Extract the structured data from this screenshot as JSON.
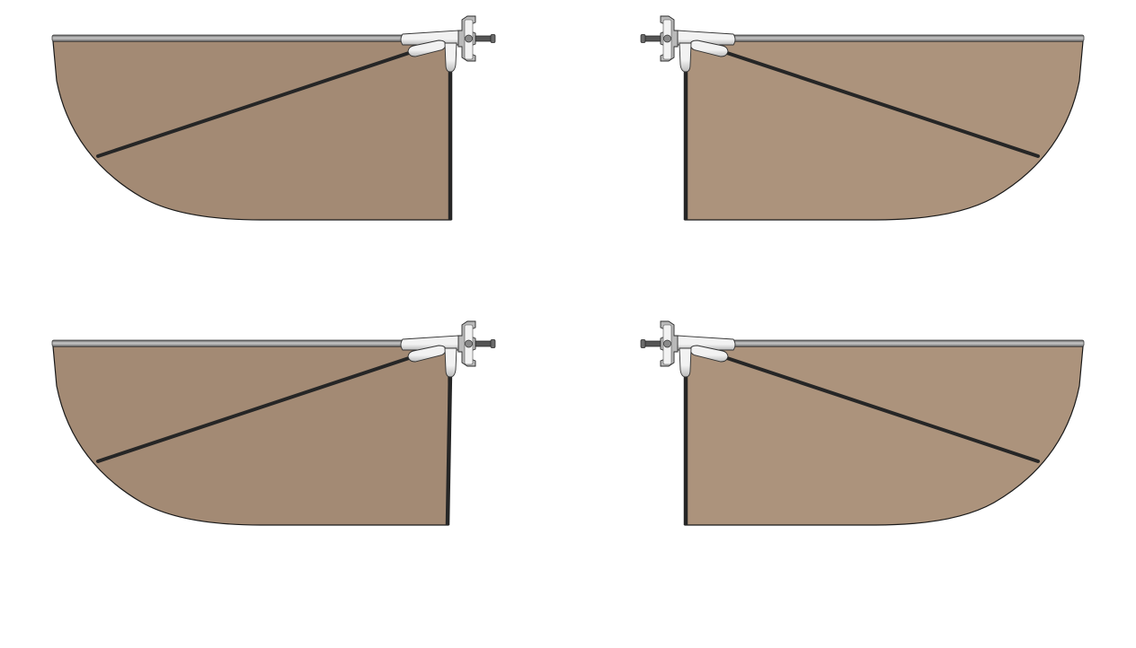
{
  "colors": {
    "background": "#ffffff",
    "sail_fill_left": "#a38a74",
    "sail_fill_right": "#ac937c",
    "outline": "#1a1a1a",
    "boom_light": "#c8c8c8",
    "boom_dark": "#7a7a7a",
    "pole": "#262626",
    "hardware_light": "#f2f2f2",
    "hardware_mid": "#b9b9b9",
    "hardware_dark": "#5d5d5d"
  },
  "panels": [
    {
      "id": "top-left",
      "orientation": "left",
      "mast_lean": 0
    },
    {
      "id": "top-right",
      "orientation": "right",
      "mast_lean": 0
    },
    {
      "id": "bottom-left",
      "orientation": "left",
      "mast_lean": -3
    },
    {
      "id": "bottom-right",
      "orientation": "right",
      "mast_lean": 0
    }
  ]
}
